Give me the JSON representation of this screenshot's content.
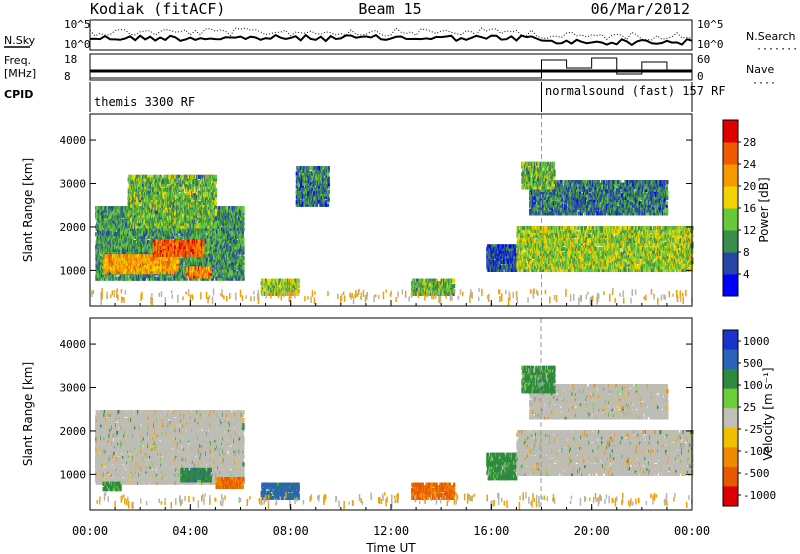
{
  "header": {
    "station": "Kodiak (fitACF)",
    "beam": "Beam 15",
    "date": "06/Mar/2012"
  },
  "noise_panel": {
    "left_label": "N.Sky",
    "right_label": "N.Search",
    "right_legend_symbol": "·······",
    "ticks_left": [
      "10^5",
      "10^0"
    ],
    "ticks_right": [
      "10^5",
      "10^0"
    ]
  },
  "freq_panel": {
    "left_label_line1": "Freq.",
    "left_label_line2": "[MHz]",
    "right_label": "Nave",
    "right_legend_symbol": "····",
    "ticks_left": [
      "18",
      "8"
    ],
    "ticks_right": [
      "60",
      "0"
    ]
  },
  "cpid_panel": {
    "label": "CPID",
    "modes": [
      {
        "name": "themis 3300 RF",
        "start_hour": 0,
        "end_hour": 18
      },
      {
        "name": "normalsound (fast) 157 RF",
        "start_hour": 18,
        "end_hour": 24
      }
    ]
  },
  "colors": {
    "power_scale": [
      "#0000ff",
      "#2845a8",
      "#3a8e4a",
      "#66c83a",
      "#f2d400",
      "#f59b00",
      "#f05a00",
      "#e00000"
    ],
    "velocity_scale": [
      "#1a33cc",
      "#2a63b8",
      "#2e8a3e",
      "#6ccf3a",
      "#c0c0b8",
      "#f0c000",
      "#f08a00",
      "#e85800",
      "#dd0000"
    ],
    "ground_scatter": "#bdbdb5"
  },
  "chart_data": [
    {
      "type": "heatmap",
      "title": "Power",
      "xlabel": "Time UT",
      "ylabel": "Slant Range [km]",
      "x_range_hours": [
        0,
        24
      ],
      "ylim": [
        180,
        4600
      ],
      "x_ticks": [
        "00:00",
        "04:00",
        "08:00",
        "12:00",
        "16:00",
        "20:00",
        "00:00"
      ],
      "y_ticks": [
        "1000",
        "2000",
        "3000",
        "4000"
      ],
      "colorbar": {
        "label": "Power [dB]",
        "ticks": [
          "4",
          "8",
          "12",
          "16",
          "20",
          "24",
          "28"
        ],
        "range": [
          0,
          30
        ]
      },
      "patches": [
        {
          "t0": 0.2,
          "t1": 6.1,
          "r0": 800,
          "r1": 2500,
          "level": 10
        },
        {
          "t0": 0.5,
          "t1": 3.5,
          "r0": 950,
          "r1": 1350,
          "level": 20
        },
        {
          "t0": 2.5,
          "t1": 4.5,
          "r0": 1350,
          "r1": 1700,
          "level": 24
        },
        {
          "t0": 3.8,
          "t1": 4.8,
          "r0": 850,
          "r1": 1100,
          "level": 22
        },
        {
          "t0": 1.5,
          "t1": 5.0,
          "r0": 2000,
          "r1": 3200,
          "level": 12
        },
        {
          "t0": 6.8,
          "t1": 8.3,
          "r0": 450,
          "r1": 800,
          "level": 14
        },
        {
          "t0": 8.2,
          "t1": 9.5,
          "r0": 2500,
          "r1": 3400,
          "level": 8
        },
        {
          "t0": 12.8,
          "t1": 14.5,
          "r0": 450,
          "r1": 800,
          "level": 12
        },
        {
          "t0": 15.8,
          "t1": 17.0,
          "r0": 1000,
          "r1": 1600,
          "level": 6
        },
        {
          "t0": 17.0,
          "t1": 24.0,
          "r0": 1000,
          "r1": 2000,
          "level": 14
        },
        {
          "t0": 17.5,
          "t1": 23.0,
          "r0": 2300,
          "r1": 3100,
          "level": 8
        },
        {
          "t0": 17.2,
          "t1": 18.5,
          "r0": 2900,
          "r1": 3500,
          "level": 12
        }
      ]
    },
    {
      "type": "heatmap",
      "title": "Velocity",
      "xlabel": "Time UT",
      "ylabel": "Slant Range [km]",
      "x_range_hours": [
        0,
        24
      ],
      "ylim": [
        180,
        4600
      ],
      "x_ticks": [
        "00:00",
        "04:00",
        "08:00",
        "12:00",
        "16:00",
        "20:00",
        "00:00"
      ],
      "y_ticks": [
        "1000",
        "2000",
        "3000",
        "4000"
      ],
      "colorbar": {
        "label": "Velocity [m s⁻¹]",
        "ticks": [
          "1000",
          "500",
          "100",
          "25",
          "-25",
          "-100",
          "-500",
          "-1000"
        ]
      },
      "patches": [
        {
          "t0": 0.2,
          "t1": 6.1,
          "r0": 800,
          "r1": 2500,
          "velocity": 0,
          "ground": true
        },
        {
          "t0": 0.5,
          "t1": 1.2,
          "r0": 650,
          "r1": 850,
          "velocity": 150
        },
        {
          "t0": 3.6,
          "t1": 4.8,
          "r0": 850,
          "r1": 1150,
          "velocity": 200
        },
        {
          "t0": 5.0,
          "t1": 6.1,
          "r0": 700,
          "r1": 950,
          "velocity": -300
        },
        {
          "t0": 6.8,
          "t1": 8.3,
          "r0": 450,
          "r1": 800,
          "velocity": 400
        },
        {
          "t0": 12.8,
          "t1": 14.5,
          "r0": 450,
          "r1": 800,
          "velocity": -350
        },
        {
          "t0": 15.8,
          "t1": 17.0,
          "r0": 900,
          "r1": 1500,
          "velocity": 150
        },
        {
          "t0": 17.0,
          "t1": 24.0,
          "r0": 1000,
          "r1": 2000,
          "velocity": 0,
          "ground": true
        },
        {
          "t0": 17.5,
          "t1": 23.0,
          "r0": 2300,
          "r1": 3100,
          "velocity": 0,
          "ground": true
        },
        {
          "t0": 17.2,
          "t1": 18.5,
          "r0": 2900,
          "r1": 3500,
          "velocity": 150
        }
      ]
    }
  ]
}
